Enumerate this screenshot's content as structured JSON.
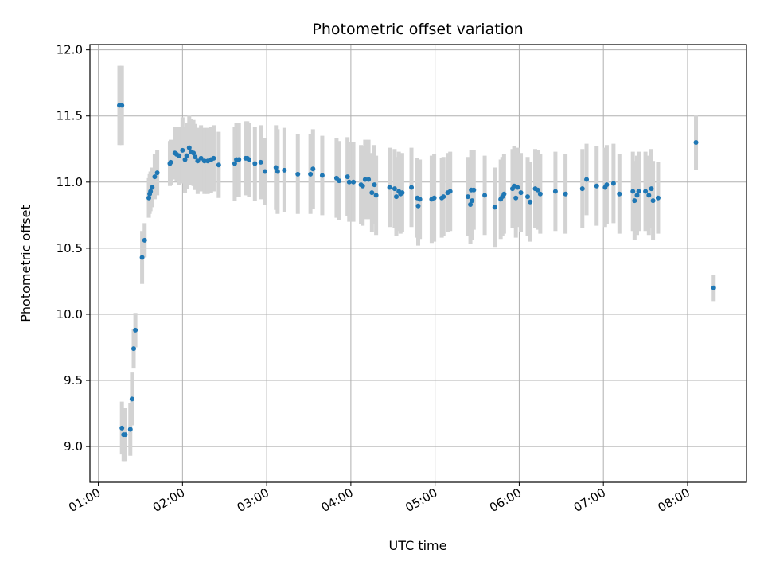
{
  "chart_data": {
    "type": "scatter",
    "title": "Photometric offset variation",
    "xlabel": "UTC time",
    "ylabel": "Photometric offset",
    "x_unit": "UTC hour",
    "xlim": [
      0.9,
      8.7
    ],
    "ylim": [
      8.73,
      12.04
    ],
    "x_ticks": [
      {
        "value": 1,
        "label": "01:00"
      },
      {
        "value": 2,
        "label": "02:00"
      },
      {
        "value": 3,
        "label": "03:00"
      },
      {
        "value": 4,
        "label": "04:00"
      },
      {
        "value": 5,
        "label": "05:00"
      },
      {
        "value": 6,
        "label": "06:00"
      },
      {
        "value": 7,
        "label": "07:00"
      },
      {
        "value": 8,
        "label": "08:00"
      }
    ],
    "y_ticks": [
      {
        "value": 9.0,
        "label": "9.0"
      },
      {
        "value": 9.5,
        "label": "9.5"
      },
      {
        "value": 10.0,
        "label": "10.0"
      },
      {
        "value": 10.5,
        "label": "10.5"
      },
      {
        "value": 11.0,
        "label": "11.0"
      },
      {
        "value": 11.5,
        "label": "11.5"
      },
      {
        "value": 12.0,
        "label": "12.0"
      }
    ],
    "grid": true,
    "colors": {
      "marker": "#1f77b4",
      "errorbar": "#d3d3d3",
      "grid": "#b0b0b0"
    },
    "series": [
      {
        "points": [
          [
            1.25,
            11.58,
            0.3
          ],
          [
            1.28,
            11.58,
            0.3
          ],
          [
            1.28,
            9.14,
            0.2
          ],
          [
            1.3,
            9.09,
            0.2
          ],
          [
            1.32,
            9.09,
            0.2
          ],
          [
            1.38,
            9.13,
            0.2
          ],
          [
            1.4,
            9.36,
            0.2
          ],
          [
            1.42,
            9.74,
            0.15
          ],
          [
            1.44,
            9.88,
            0.13
          ],
          [
            1.52,
            10.43,
            0.2
          ],
          [
            1.55,
            10.56,
            0.13
          ],
          [
            1.6,
            10.88,
            0.15
          ],
          [
            1.61,
            10.91,
            0.15
          ],
          [
            1.62,
            10.93,
            0.15
          ],
          [
            1.64,
            10.96,
            0.15
          ],
          [
            1.67,
            11.04,
            0.17
          ],
          [
            1.7,
            11.07,
            0.17
          ],
          [
            1.85,
            11.14,
            0.17
          ],
          [
            1.86,
            11.15,
            0.17
          ],
          [
            1.91,
            11.22,
            0.2
          ],
          [
            1.93,
            11.21,
            0.2
          ],
          [
            1.96,
            11.2,
            0.22
          ],
          [
            2.0,
            11.24,
            0.25
          ],
          [
            2.03,
            11.17,
            0.25
          ],
          [
            2.05,
            11.2,
            0.25
          ],
          [
            2.08,
            11.26,
            0.25
          ],
          [
            2.1,
            11.23,
            0.25
          ],
          [
            2.13,
            11.22,
            0.25
          ],
          [
            2.15,
            11.19,
            0.25
          ],
          [
            2.18,
            11.16,
            0.25
          ],
          [
            2.22,
            11.18,
            0.25
          ],
          [
            2.26,
            11.16,
            0.25
          ],
          [
            2.3,
            11.16,
            0.25
          ],
          [
            2.34,
            11.17,
            0.25
          ],
          [
            2.37,
            11.18,
            0.25
          ],
          [
            2.43,
            11.13,
            0.25
          ],
          [
            2.62,
            11.14,
            0.28
          ],
          [
            2.64,
            11.17,
            0.28
          ],
          [
            2.67,
            11.17,
            0.28
          ],
          [
            2.75,
            11.18,
            0.28
          ],
          [
            2.77,
            11.18,
            0.28
          ],
          [
            2.79,
            11.17,
            0.28
          ],
          [
            2.86,
            11.14,
            0.28
          ],
          [
            2.93,
            11.15,
            0.28
          ],
          [
            2.98,
            11.08,
            0.25
          ],
          [
            3.11,
            11.11,
            0.32
          ],
          [
            3.13,
            11.08,
            0.32
          ],
          [
            3.21,
            11.09,
            0.32
          ],
          [
            3.37,
            11.06,
            0.3
          ],
          [
            3.52,
            11.06,
            0.3
          ],
          [
            3.55,
            11.1,
            0.3
          ],
          [
            3.66,
            11.05,
            0.3
          ],
          [
            3.83,
            11.03,
            0.3
          ],
          [
            3.86,
            11.01,
            0.3
          ],
          [
            3.96,
            11.04,
            0.3
          ],
          [
            3.98,
            11.0,
            0.3
          ],
          [
            4.03,
            11.0,
            0.3
          ],
          [
            4.12,
            10.98,
            0.3
          ],
          [
            4.14,
            10.97,
            0.3
          ],
          [
            4.17,
            11.02,
            0.3
          ],
          [
            4.21,
            11.02,
            0.3
          ],
          [
            4.25,
            10.92,
            0.3
          ],
          [
            4.28,
            10.98,
            0.3
          ],
          [
            4.3,
            10.9,
            0.3
          ],
          [
            4.46,
            10.96,
            0.3
          ],
          [
            4.52,
            10.95,
            0.3
          ],
          [
            4.54,
            10.89,
            0.3
          ],
          [
            4.57,
            10.93,
            0.3
          ],
          [
            4.59,
            10.91,
            0.3
          ],
          [
            4.61,
            10.92,
            0.3
          ],
          [
            4.72,
            10.96,
            0.3
          ],
          [
            4.79,
            10.88,
            0.3
          ],
          [
            4.8,
            10.82,
            0.3
          ],
          [
            4.82,
            10.87,
            0.3
          ],
          [
            4.96,
            10.87,
            0.33
          ],
          [
            4.99,
            10.88,
            0.33
          ],
          [
            5.08,
            10.88,
            0.3
          ],
          [
            5.1,
            10.89,
            0.3
          ],
          [
            5.15,
            10.92,
            0.3
          ],
          [
            5.18,
            10.93,
            0.3
          ],
          [
            5.39,
            10.89,
            0.3
          ],
          [
            5.42,
            10.83,
            0.3
          ],
          [
            5.44,
            10.86,
            0.3
          ],
          [
            5.43,
            10.94,
            0.3
          ],
          [
            5.46,
            10.94,
            0.3
          ],
          [
            5.59,
            10.9,
            0.3
          ],
          [
            5.71,
            10.81,
            0.3
          ],
          [
            5.78,
            10.87,
            0.3
          ],
          [
            5.8,
            10.89,
            0.3
          ],
          [
            5.82,
            10.91,
            0.3
          ],
          [
            5.92,
            10.95,
            0.3
          ],
          [
            5.94,
            10.97,
            0.3
          ],
          [
            5.96,
            10.88,
            0.3
          ],
          [
            5.98,
            10.96,
            0.3
          ],
          [
            6.02,
            10.92,
            0.3
          ],
          [
            6.1,
            10.89,
            0.3
          ],
          [
            6.13,
            10.85,
            0.3
          ],
          [
            6.19,
            10.95,
            0.3
          ],
          [
            6.22,
            10.94,
            0.3
          ],
          [
            6.25,
            10.91,
            0.3
          ],
          [
            6.43,
            10.93,
            0.3
          ],
          [
            6.55,
            10.91,
            0.3
          ],
          [
            6.75,
            10.95,
            0.3
          ],
          [
            6.8,
            11.02,
            0.27
          ],
          [
            6.92,
            10.97,
            0.3
          ],
          [
            7.02,
            10.96,
            0.3
          ],
          [
            7.04,
            10.98,
            0.3
          ],
          [
            7.12,
            10.99,
            0.3
          ],
          [
            7.19,
            10.91,
            0.3
          ],
          [
            7.35,
            10.93,
            0.3
          ],
          [
            7.37,
            10.86,
            0.3
          ],
          [
            7.4,
            10.9,
            0.3
          ],
          [
            7.42,
            10.93,
            0.3
          ],
          [
            7.5,
            10.93,
            0.3
          ],
          [
            7.54,
            10.9,
            0.3
          ],
          [
            7.57,
            10.95,
            0.3
          ],
          [
            7.59,
            10.86,
            0.3
          ],
          [
            7.65,
            10.88,
            0.27
          ],
          [
            8.1,
            11.3,
            0.21
          ],
          [
            8.31,
            10.2,
            0.1
          ]
        ]
      }
    ]
  }
}
